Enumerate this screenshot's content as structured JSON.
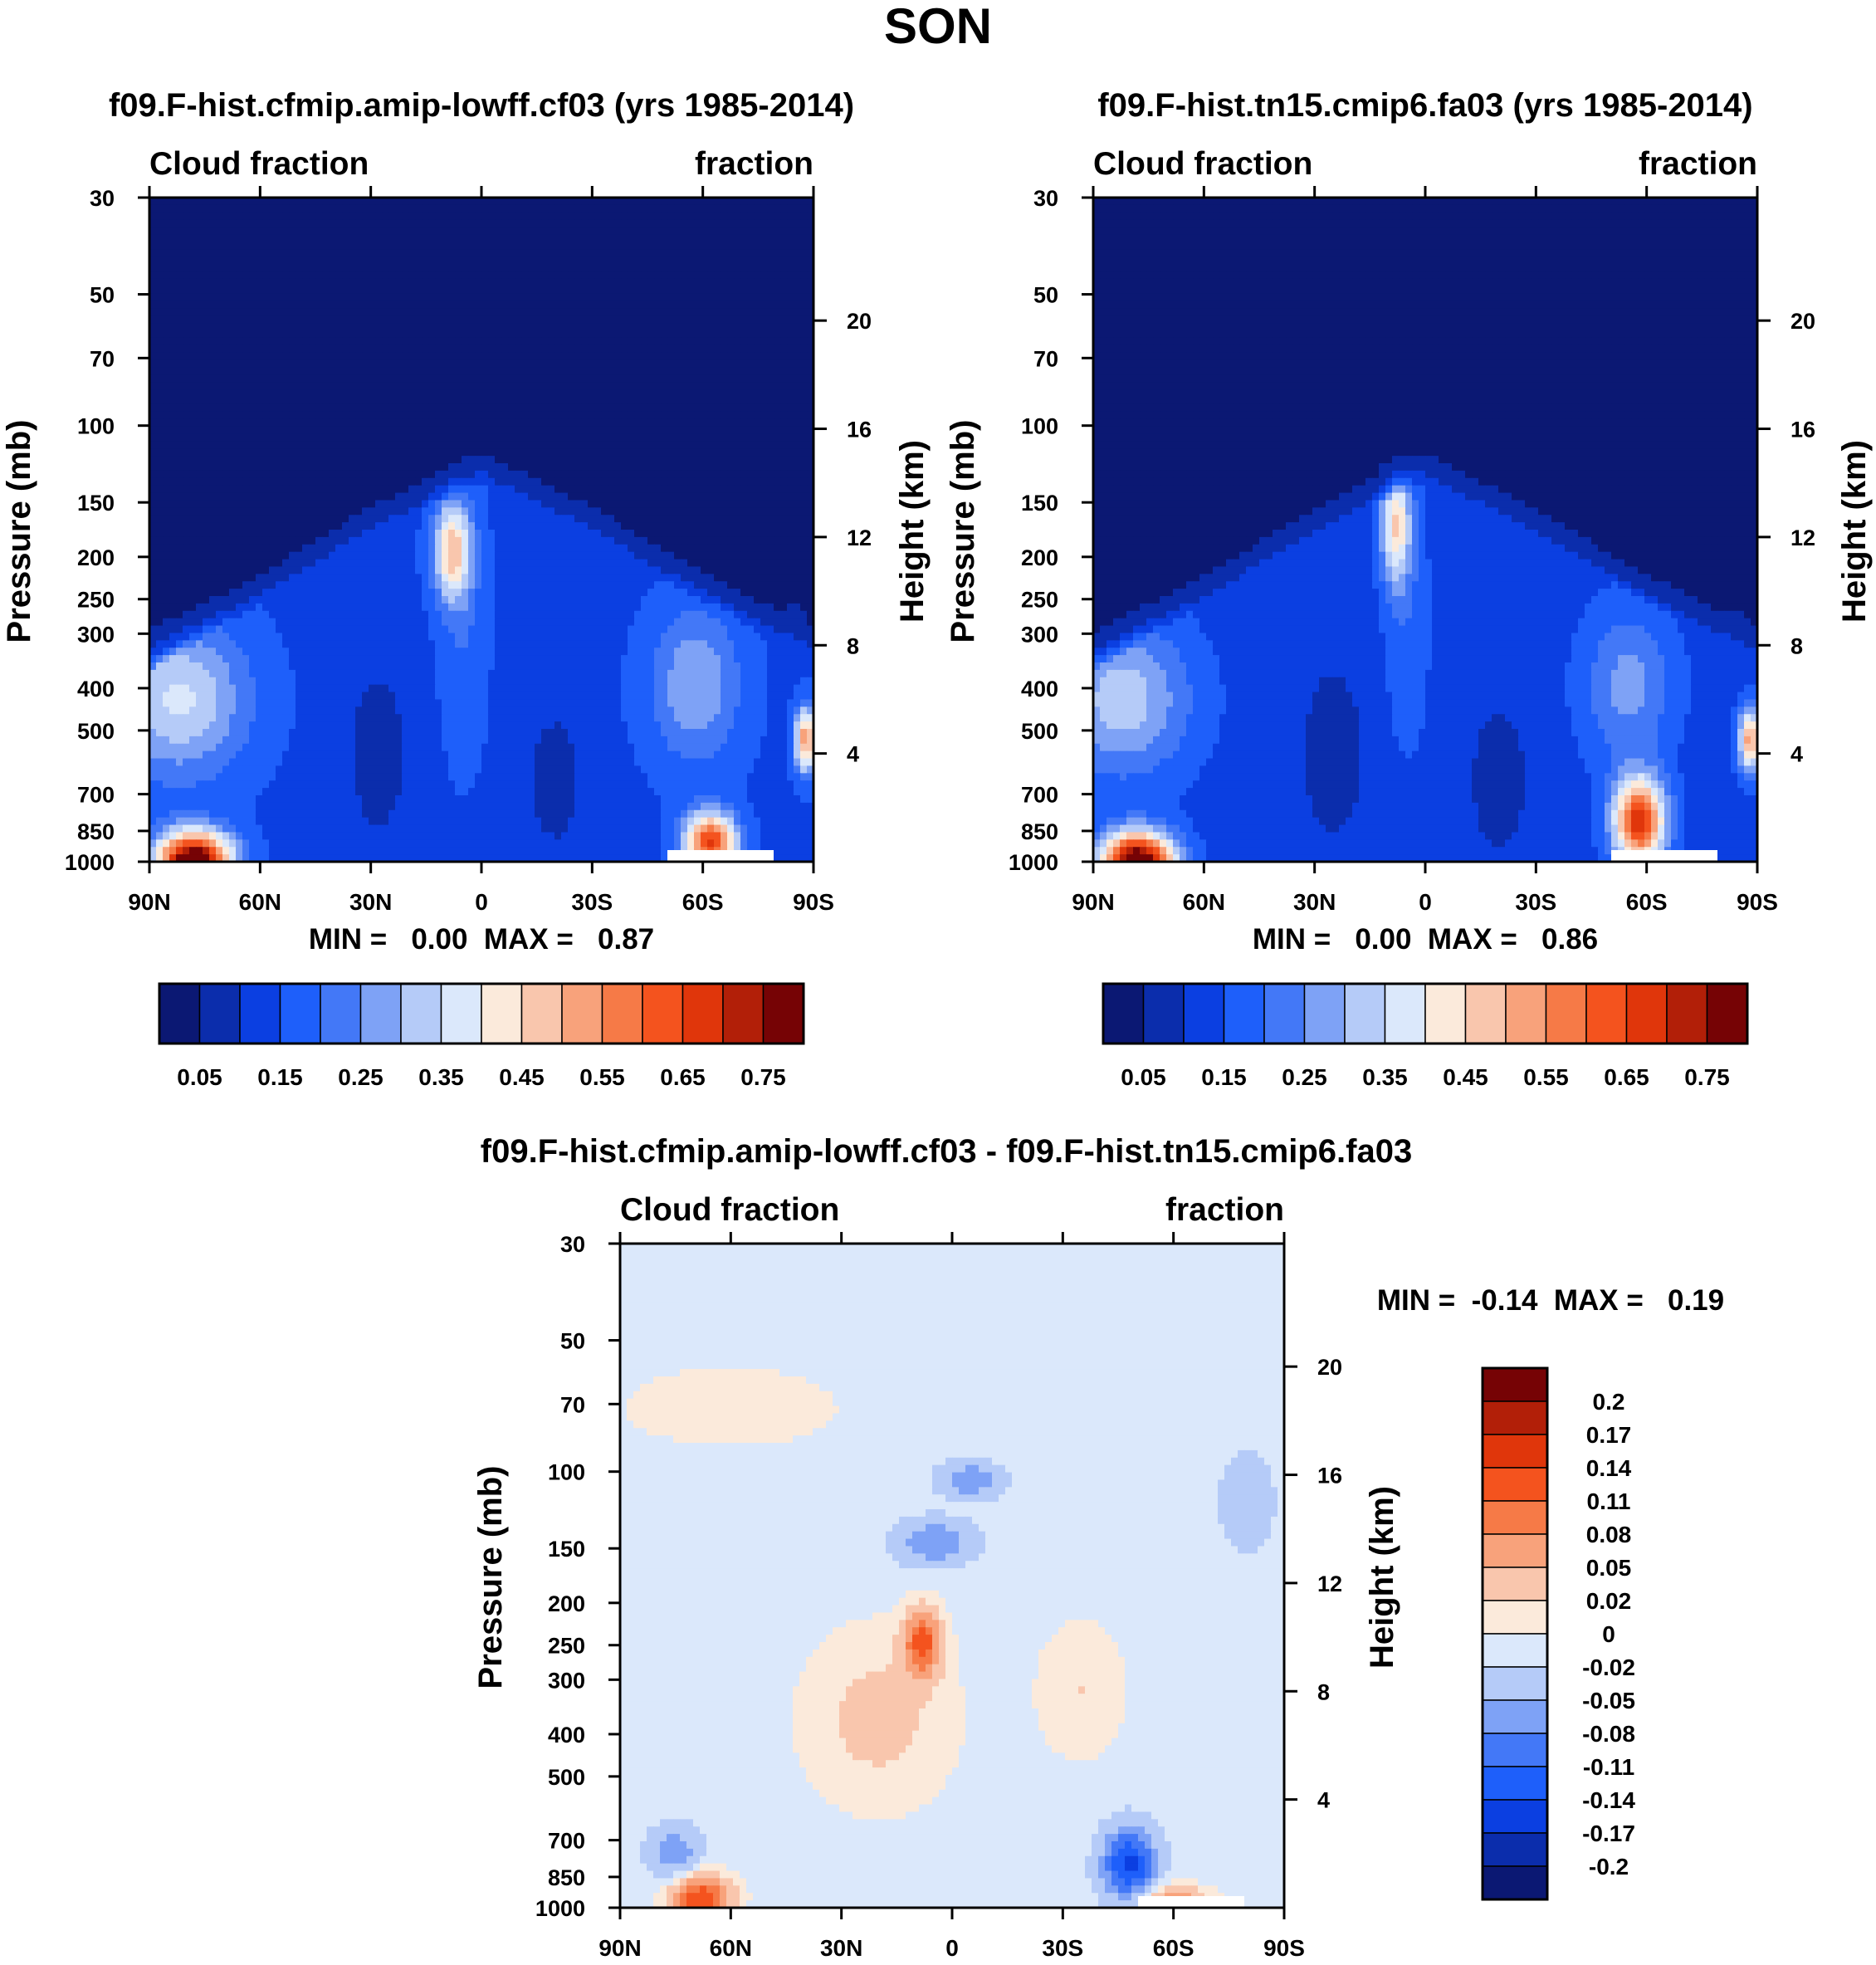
{
  "page_title": "SON",
  "colors": {
    "main_scale": [
      "#0b1873",
      "#0b2dac",
      "#0b3fe1",
      "#1e5ffa",
      "#4378f7",
      "#7ea2f6",
      "#b5cbf8",
      "#dbe8fb",
      "#fbeadb",
      "#f9c6ad",
      "#f8a27b",
      "#f67a47",
      "#f4531e",
      "#e0360b",
      "#b21f08",
      "#760305"
    ],
    "diff_scale": [
      "#0b1873",
      "#0b2dac",
      "#0b3fe1",
      "#1e5ffa",
      "#4378f7",
      "#7ea2f6",
      "#b5cbf8",
      "#dbe8fb",
      "#fbeadb",
      "#f9c6ad",
      "#f8a27b",
      "#f67a47",
      "#f4531e",
      "#e0360b",
      "#b21f08",
      "#760305"
    ]
  },
  "chart_data": [
    {
      "type": "heatmap",
      "title": "f09.F-hist.cfmip.amip-lowff.cf03 (yrs 1985-2014)",
      "left_subtitle": "Cloud fraction",
      "right_subtitle": "fraction",
      "ylabel": "Pressure (mb)",
      "y2label": "Height (km)",
      "x_ticks": [
        "90N",
        "60N",
        "30N",
        "0",
        "30S",
        "60S",
        "90S"
      ],
      "x_tick_values": [
        90,
        60,
        30,
        0,
        -30,
        -60,
        -90
      ],
      "y_ticks": [
        "30",
        "50",
        "70",
        "100",
        "150",
        "200",
        "250",
        "300",
        "400",
        "500",
        "700",
        "850",
        "1000"
      ],
      "y_tick_values": [
        30,
        50,
        70,
        100,
        150,
        200,
        250,
        300,
        400,
        500,
        700,
        850,
        1000
      ],
      "y2_ticks": [
        "20",
        "16",
        "12",
        "8",
        "4"
      ],
      "y2_tick_values": [
        20,
        16,
        12,
        8,
        4
      ],
      "ylim": [
        30,
        1000
      ],
      "xlim": [
        90,
        -90
      ],
      "min_max_label": "MIN =   0.00  MAX =   0.87",
      "min": 0.0,
      "max": 0.87,
      "colorbar_labels": [
        "0.05",
        "0.15",
        "0.25",
        "0.35",
        "0.45",
        "0.55",
        "0.65",
        "0.75"
      ],
      "field": {
        "base": 0.14,
        "upper_value": 0.02,
        "tropopause_lat_height": [
          [
            90,
            7
          ],
          [
            60,
            9.5
          ],
          [
            30,
            12
          ],
          [
            0,
            14
          ],
          [
            -30,
            12
          ],
          [
            -60,
            9.5
          ],
          [
            -90,
            7.5
          ]
        ],
        "features": [
          {
            "lat": 78,
            "z": 0.0,
            "slat": 10,
            "sz": 1.1,
            "amp": 0.72
          },
          {
            "lat": 82,
            "z": 6.0,
            "slat": 18,
            "sz": 2.8,
            "amp": 0.22
          },
          {
            "lat": 8,
            "z": 11.5,
            "slat": 5,
            "sz": 1.8,
            "amp": 0.32
          },
          {
            "lat": -62,
            "z": 0.7,
            "slat": 7,
            "sz": 1.1,
            "amp": 0.52
          },
          {
            "lat": -58,
            "z": 6.5,
            "slat": 12,
            "sz": 2.8,
            "amp": 0.16
          },
          {
            "lat": -86,
            "z": 11.0,
            "slat": 4,
            "sz": 1.6,
            "amp": 0.3
          },
          {
            "lat": -88,
            "z": 4.5,
            "slat": 3,
            "sz": 1.2,
            "amp": 0.4
          },
          {
            "lat": 28,
            "z": 4.0,
            "slat": 9,
            "sz": 3.5,
            "amp": -0.07
          },
          {
            "lat": -20,
            "z": 3.0,
            "slat": 7,
            "sz": 2.5,
            "amp": -0.08
          }
        ],
        "zonal_itcz": {
          "lat": 5,
          "width": 6,
          "amp": 0.06
        }
      }
    },
    {
      "type": "heatmap",
      "title": "f09.F-hist.tn15.cmip6.fa03 (yrs 1985-2014)",
      "left_subtitle": "Cloud fraction",
      "right_subtitle": "fraction",
      "ylabel": "Pressure (mb)",
      "y2label": "Height (km)",
      "x_ticks": [
        "90N",
        "60N",
        "30N",
        "0",
        "30S",
        "60S",
        "90S"
      ],
      "x_tick_values": [
        90,
        60,
        30,
        0,
        -30,
        -60,
        -90
      ],
      "y_ticks": [
        "30",
        "50",
        "70",
        "100",
        "150",
        "200",
        "250",
        "300",
        "400",
        "500",
        "700",
        "850",
        "1000"
      ],
      "y_tick_values": [
        30,
        50,
        70,
        100,
        150,
        200,
        250,
        300,
        400,
        500,
        700,
        850,
        1000
      ],
      "y2_ticks": [
        "20",
        "16",
        "12",
        "8",
        "4"
      ],
      "y2_tick_values": [
        20,
        16,
        12,
        8,
        4
      ],
      "ylim": [
        30,
        1000
      ],
      "xlim": [
        90,
        -90
      ],
      "min_max_label": "MIN =   0.00  MAX =   0.86",
      "min": 0.0,
      "max": 0.86,
      "colorbar_labels": [
        "0.05",
        "0.15",
        "0.25",
        "0.35",
        "0.45",
        "0.55",
        "0.65",
        "0.75"
      ],
      "field": {
        "base": 0.13,
        "upper_value": 0.02,
        "tropopause_lat_height": [
          [
            90,
            7
          ],
          [
            60,
            9.5
          ],
          [
            30,
            12
          ],
          [
            0,
            14
          ],
          [
            -30,
            12
          ],
          [
            -60,
            9.5
          ],
          [
            -90,
            7.5
          ]
        ],
        "features": [
          {
            "lat": 78,
            "z": 0.0,
            "slat": 10,
            "sz": 1.1,
            "amp": 0.72
          },
          {
            "lat": 82,
            "z": 6.0,
            "slat": 18,
            "sz": 2.8,
            "amp": 0.2
          },
          {
            "lat": 8,
            "z": 12.5,
            "slat": 4,
            "sz": 2.2,
            "amp": 0.3
          },
          {
            "lat": -58,
            "z": 1.5,
            "slat": 7,
            "sz": 1.6,
            "amp": 0.55
          },
          {
            "lat": -55,
            "z": 6.5,
            "slat": 12,
            "sz": 2.8,
            "amp": 0.14
          },
          {
            "lat": -86,
            "z": 11.0,
            "slat": 4,
            "sz": 1.6,
            "amp": 0.3
          },
          {
            "lat": -88,
            "z": 4.5,
            "slat": 3,
            "sz": 1.2,
            "amp": 0.4
          },
          {
            "lat": 25,
            "z": 4.0,
            "slat": 9,
            "sz": 3.5,
            "amp": -0.06
          },
          {
            "lat": -20,
            "z": 3.0,
            "slat": 7,
            "sz": 2.5,
            "amp": -0.08
          }
        ],
        "zonal_itcz": {
          "lat": 5,
          "width": 6,
          "amp": 0.06
        }
      }
    },
    {
      "type": "heatmap",
      "title": "f09.F-hist.cfmip.amip-lowff.cf03 - f09.F-hist.tn15.cmip6.fa03",
      "left_subtitle": "Cloud fraction",
      "right_subtitle": "fraction",
      "ylabel": "Pressure (mb)",
      "y2label": "Height (km)",
      "x_ticks": [
        "90N",
        "60N",
        "30N",
        "0",
        "30S",
        "60S",
        "90S"
      ],
      "x_tick_values": [
        90,
        60,
        30,
        0,
        -30,
        -60,
        -90
      ],
      "y_ticks": [
        "30",
        "50",
        "70",
        "100",
        "150",
        "200",
        "250",
        "300",
        "400",
        "500",
        "700",
        "850",
        "1000"
      ],
      "y_tick_values": [
        30,
        50,
        70,
        100,
        150,
        200,
        250,
        300,
        400,
        500,
        700,
        850,
        1000
      ],
      "y2_ticks": [
        "20",
        "16",
        "12",
        "8",
        "4"
      ],
      "y2_tick_values": [
        20,
        16,
        12,
        8,
        4
      ],
      "ylim": [
        30,
        1000
      ],
      "xlim": [
        90,
        -90
      ],
      "min_max_label": "MIN =  -0.14  MAX =   0.19",
      "min": -0.14,
      "max": 0.19,
      "colorbar_labels": [
        "0.2",
        "0.17",
        "0.14",
        "0.11",
        "0.08",
        "0.05",
        "0.02",
        "0",
        "-0.02",
        "-0.05",
        "-0.08",
        "-0.11",
        "-0.14",
        "-0.17",
        "-0.2"
      ],
      "field": {
        "base": -0.01,
        "features": [
          {
            "lat": 68,
            "z": 0.3,
            "slat": 8,
            "sz": 0.9,
            "amp": 0.15
          },
          {
            "lat": 20,
            "z": 7.0,
            "slat": 20,
            "sz": 3.2,
            "amp": 0.04
          },
          {
            "lat": 8,
            "z": 9.8,
            "slat": 5,
            "sz": 1.2,
            "amp": 0.13
          },
          {
            "lat": -35,
            "z": 8.0,
            "slat": 12,
            "sz": 2.5,
            "amp": 0.03
          },
          {
            "lat": -48,
            "z": 1.6,
            "slat": 7,
            "sz": 1.3,
            "amp": -0.14
          },
          {
            "lat": 75,
            "z": 2.0,
            "slat": 7,
            "sz": 1.0,
            "amp": -0.06
          },
          {
            "lat": 5,
            "z": 13.5,
            "slat": 10,
            "sz": 0.8,
            "amp": -0.07
          },
          {
            "lat": -5,
            "z": 15.8,
            "slat": 8,
            "sz": 0.6,
            "amp": -0.07
          },
          {
            "lat": -60,
            "z": 0.2,
            "slat": 10,
            "sz": 0.6,
            "amp": 0.08
          },
          {
            "lat": 60,
            "z": 18.5,
            "slat": 30,
            "sz": 1.5,
            "amp": 0.025
          },
          {
            "lat": -80,
            "z": 15.0,
            "slat": 8,
            "sz": 2.0,
            "amp": -0.025
          }
        ]
      }
    }
  ]
}
